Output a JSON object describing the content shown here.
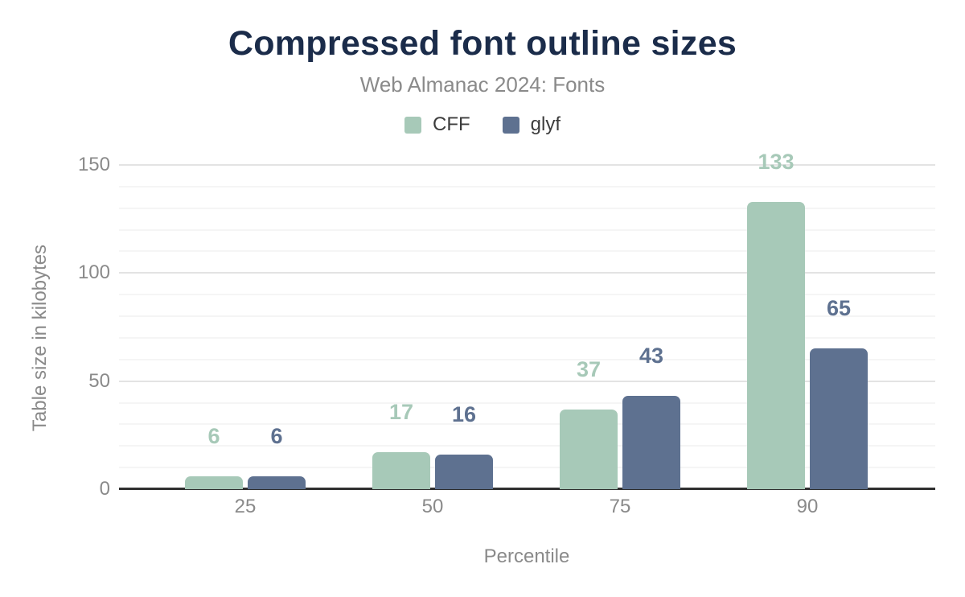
{
  "chart_data": {
    "type": "bar",
    "title": "Compressed font outline sizes",
    "subtitle": "Web Almanac 2024: Fonts",
    "xlabel": "Percentile",
    "ylabel": "Table size in kilobytes",
    "categories": [
      "25",
      "50",
      "75",
      "90"
    ],
    "series": [
      {
        "name": "CFF",
        "color": "#a7c9b8",
        "values": [
          6,
          17,
          37,
          133
        ]
      },
      {
        "name": "glyf",
        "color": "#5e7190",
        "values": [
          6,
          16,
          43,
          65
        ]
      }
    ],
    "yticks": [
      0,
      50,
      100,
      150
    ],
    "ylim": [
      0,
      163
    ],
    "minor_grid_step": 10,
    "grid": true,
    "legend_position": "top"
  },
  "colors": {
    "title": "#1b2c4a",
    "subtitle": "#8a8a8a",
    "axis_text": "#8a8a8a",
    "legend_text": "#3c3c3c",
    "axis_line": "#2f2f2f",
    "gridline_major": "#e3e3e3",
    "gridline_minor": "#f5f5f5",
    "background": "#ffffff"
  }
}
